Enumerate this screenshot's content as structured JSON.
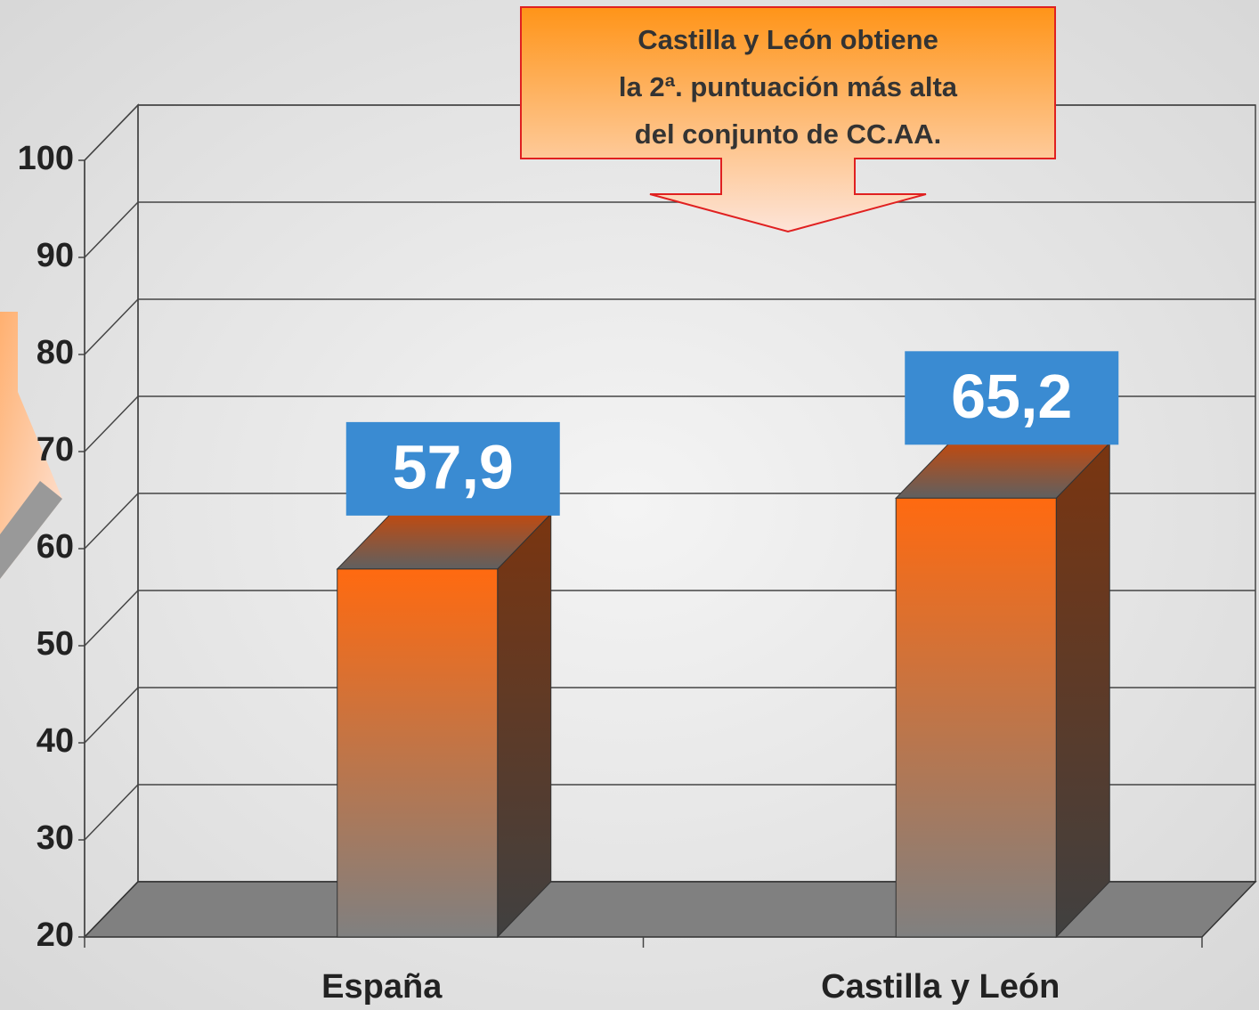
{
  "chart_data": {
    "type": "bar3d",
    "categories": [
      "España",
      "Castilla y León"
    ],
    "values": [
      57.9,
      65.2
    ],
    "value_labels": [
      "57,9",
      "65,2"
    ],
    "ylim": [
      20,
      100
    ],
    "yticks": [
      20,
      30,
      40,
      50,
      60,
      70,
      80,
      90,
      100
    ],
    "grid": true,
    "color": "#ff6a10",
    "annotation": [
      "Castilla y León obtiene",
      "la 2ª. puntuación más alta",
      "del conjunto de CC.AA."
    ]
  }
}
